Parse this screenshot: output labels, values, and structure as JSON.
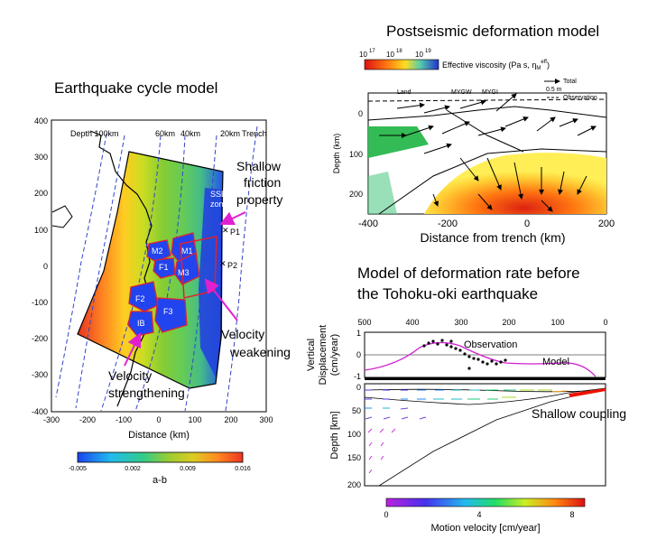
{
  "titles": {
    "left": "Earthquake cycle model",
    "top_right": "Postseismic deformation model",
    "bottom_right_line1": "Model of deformation rate before",
    "bottom_right_line2": "the Tohoku-oki earthquake"
  },
  "left_panel": {
    "xlabel": "Distance (km)",
    "x_ticks": [
      "-300",
      "-200",
      "-100",
      "0",
      "100",
      "200",
      "300"
    ],
    "y_ticks": [
      "400",
      "300",
      "200",
      "100",
      "0",
      "-100",
      "-200",
      "-300",
      "-400"
    ],
    "depth_labels": [
      "Depth 100km",
      "60km",
      "40km",
      "20km",
      "Trench"
    ],
    "regions": [
      "SSE",
      "zone",
      "M2",
      "M1",
      "F1",
      "M3",
      "F2",
      "F3",
      "IB"
    ],
    "points": [
      "P1",
      "P2"
    ],
    "annotations": {
      "shallow_1": "Shallow",
      "shallow_2": "friction",
      "shallow_3": "property",
      "vw_1": "Velocity",
      "vw_2": "weakening",
      "vs_1": "Velocity",
      "vs_2": "strengthening"
    },
    "colorbar": {
      "ticks": [
        "-0.005",
        "0.002",
        "0.009",
        "0.016"
      ],
      "label": "a-b",
      "colors": [
        "#2255ee",
        "#22bbee",
        "#33cc88",
        "#88cc33",
        "#ccdd22",
        "#ffcc22",
        "#ff8822",
        "#ee3322"
      ]
    }
  },
  "top_right_panel": {
    "colorbar_ticks": [
      "10",
      "10",
      "10"
    ],
    "colorbar_exps": [
      "17",
      "18",
      "19"
    ],
    "colorbar_label": "Effective viscosity (Pa s, η",
    "colorbar_label_sub": "M",
    "colorbar_label_sup": "eff",
    "colorbar_label_end": ")",
    "legend_total": "Total",
    "legend_scale": "0.5 m",
    "legend_obs": "Observation",
    "stations": [
      "Land",
      "MYGW",
      "MYGI"
    ],
    "ylabel": "Depth (km)",
    "y_ticks": [
      "0",
      "100",
      "200"
    ],
    "x_ticks": [
      "-400",
      "-200",
      "0",
      "200"
    ],
    "xlabel": "Distance from trench (km)"
  },
  "bottom_right_panel": {
    "x_ticks_top": [
      "500",
      "400",
      "300",
      "200",
      "100",
      "0"
    ],
    "upper_ylabel_1": "Vertical",
    "upper_ylabel_2": "Displacement",
    "upper_ylabel_3": "(cm/year)",
    "upper_y_ticks": [
      "1",
      "0",
      "-1"
    ],
    "legend_obs": "Observation",
    "legend_model": "Model",
    "lower_ylabel": "Depth [km]",
    "lower_y_ticks": [
      "0",
      "50",
      "100",
      "150",
      "200"
    ],
    "annotation": "Shallow coupling",
    "colorbar_ticks": [
      "0",
      "4",
      "8"
    ],
    "colorbar_label": "Motion velocity [cm/year]"
  },
  "colors": {
    "annotation_arrow": "#e020d0",
    "ssez_blue": "#2244dd",
    "asperity_outline": "#dd2233",
    "coupling_red": "#ee1100"
  }
}
